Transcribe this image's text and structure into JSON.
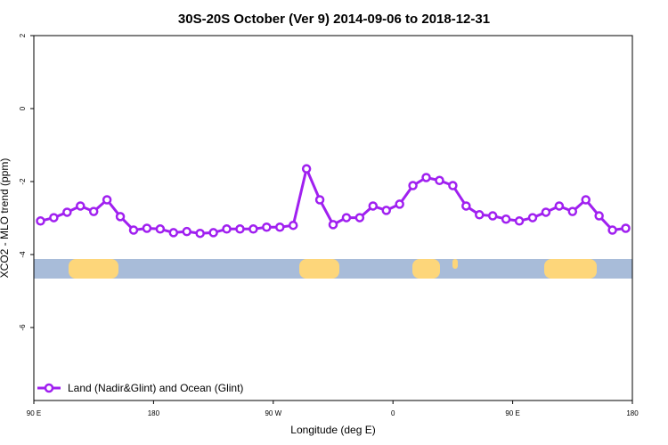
{
  "chart_data": {
    "type": "line",
    "title": "30S-20S October (Ver 9)   2014-09-06 to 2018-12-31",
    "x_label": "Longitude (deg E)",
    "y_label": "XCO2 - MLO trend (ppm)",
    "x": [
      95,
      105,
      115,
      125,
      135,
      145,
      155,
      165,
      175,
      185,
      195,
      205,
      215,
      225,
      235,
      245,
      255,
      265,
      275,
      285,
      295,
      305,
      315,
      325,
      335,
      345,
      355,
      365,
      375,
      385,
      395,
      405,
      415,
      425,
      435,
      445,
      455,
      465,
      475,
      485,
      495,
      505,
      515,
      525,
      535
    ],
    "series": [
      {
        "name": "Land (Nadir&Glint) and Ocean (Glint)",
        "color": "#a020f0",
        "values": [
          -3.08,
          -2.99,
          -2.84,
          -2.67,
          -2.82,
          -2.5,
          -2.96,
          -3.33,
          -3.28,
          -3.3,
          -3.4,
          -3.37,
          -3.42,
          -3.4,
          -3.3,
          -3.3,
          -3.3,
          -3.25,
          -3.25,
          -3.2,
          -1.65,
          -2.5,
          -3.18,
          -2.99,
          -2.99,
          -2.67,
          -2.79,
          -2.62,
          -2.11,
          -1.89,
          -1.97,
          -2.11,
          -2.67,
          -2.91,
          -2.94,
          -3.03,
          -3.08,
          -2.99,
          -2.84,
          -2.67,
          -2.82,
          -2.5,
          -2.94,
          -3.33,
          -3.28
        ]
      }
    ],
    "xlim": [
      90,
      540
    ],
    "xticks": [
      {
        "value": 90,
        "label": "90 E"
      },
      {
        "value": 180,
        "label": "180"
      },
      {
        "value": 270,
        "label": "90 W"
      },
      {
        "value": 360,
        "label": "0"
      },
      {
        "value": 450,
        "label": "90 E"
      },
      {
        "value": 540,
        "label": "180"
      }
    ],
    "ylim": [
      -8,
      2
    ],
    "yticks": [
      -6,
      -4,
      -2,
      0,
      2
    ],
    "legend": "bottom-left"
  }
}
